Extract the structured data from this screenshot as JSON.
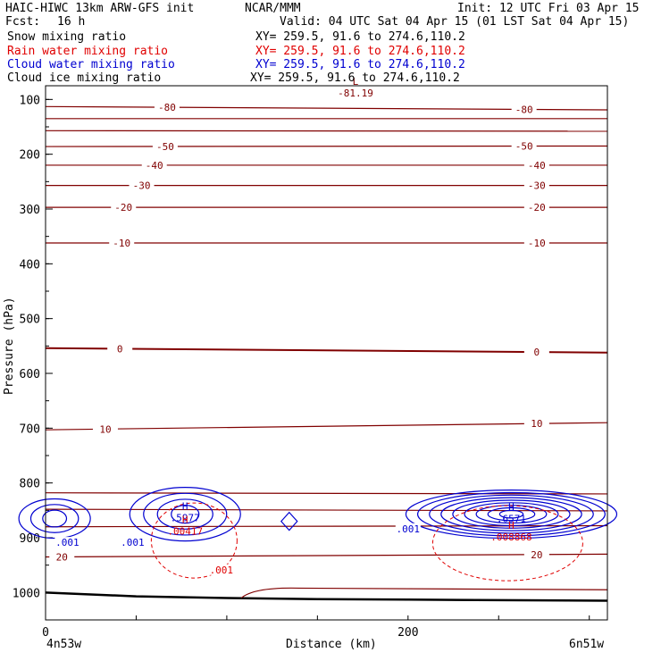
{
  "header": {
    "model": "HAIC-HIWC 13km ARW-GFS init",
    "org": "NCAR/MMM",
    "init": "Init: 12 UTC Fri 03 Apr 15",
    "fcst_label": "Fcst:",
    "fcst_value": "16 h",
    "valid": "Valid: 04 UTC Sat 04 Apr 15 (01 LST Sat 04 Apr 15)",
    "fields": [
      {
        "name": "Snow mixing ratio",
        "xy": "XY= 259.5, 91.6 to 274.6,110.2",
        "color": "#000000"
      },
      {
        "name": "Rain water mixing ratio",
        "xy": "XY= 259.5, 91.6 to 274.6,110.2",
        "color": "#e00000"
      },
      {
        "name": "Cloud water mixing ratio",
        "xy": "XY= 259.5, 91.6 to 274.6,110.2",
        "color": "#0000d0"
      },
      {
        "name": "Cloud ice mixing ratio",
        "xy": "XY= 259.5, 91.6 to 274.6,110.2",
        "color": "#000000"
      }
    ]
  },
  "chart_data": {
    "type": "line",
    "ylabel": "Pressure (hPa)",
    "xlabel": "Distance (km)",
    "ylim": [
      1050,
      75
    ],
    "xlim": [
      0,
      310
    ],
    "yticks": [
      100,
      200,
      300,
      400,
      500,
      600,
      700,
      800,
      900,
      1000
    ],
    "xticks": [
      0,
      200
    ],
    "x_endpoint_labels": {
      "left": "4n53w",
      "right": "6n51w"
    },
    "colors": {
      "temperature": "#800000",
      "rain": "#e00000",
      "cloud": "#0000d0",
      "ground": "#000000"
    },
    "temperature_isotherms": [
      {
        "t": -80,
        "y": [
          113,
          119
        ],
        "labels": [
          {
            "x": 67,
            "text": "-80"
          },
          {
            "x": 264,
            "text": "-80"
          }
        ]
      },
      {
        "t": -70,
        "y": [
          135,
          135
        ]
      },
      {
        "t": -60,
        "y": [
          157,
          158
        ]
      },
      {
        "t": -50,
        "y": [
          186,
          185
        ],
        "labels": [
          {
            "x": 66,
            "text": "-50"
          },
          {
            "x": 264,
            "text": "-50"
          }
        ]
      },
      {
        "t": -40,
        "y": [
          220,
          220
        ],
        "labels": [
          {
            "x": 60,
            "text": "-40"
          },
          {
            "x": 271,
            "text": "-40"
          }
        ]
      },
      {
        "t": -30,
        "y": [
          257,
          257
        ],
        "labels": [
          {
            "x": 53,
            "text": "-30"
          },
          {
            "x": 271,
            "text": "-30"
          }
        ]
      },
      {
        "t": -20,
        "y": [
          297,
          297
        ],
        "labels": [
          {
            "x": 43,
            "text": "-20"
          },
          {
            "x": 271,
            "text": "-20"
          }
        ]
      },
      {
        "t": -10,
        "y": [
          362,
          362
        ],
        "labels": [
          {
            "x": 42,
            "text": "-10"
          },
          {
            "x": 271,
            "text": "-10"
          }
        ]
      },
      {
        "t": 0,
        "y": [
          554,
          562
        ],
        "labels": [
          {
            "x": 41,
            "text": "0"
          },
          {
            "x": 271,
            "text": "0"
          }
        ],
        "bold": true
      },
      {
        "t": 10,
        "y": [
          703,
          690
        ],
        "labels": [
          {
            "x": 33,
            "text": "10"
          },
          {
            "x": 271,
            "text": "10"
          }
        ]
      },
      {
        "t": 20,
        "y": [
          935,
          930
        ],
        "labels": [
          {
            "x": 9,
            "text": "20"
          },
          {
            "x": 271,
            "text": "20"
          }
        ]
      }
    ],
    "extra_isotherms": [
      {
        "y": [
          880,
          878
        ]
      },
      {
        "y": [
          848,
          851
        ]
      },
      {
        "y": [
          818,
          820
        ]
      }
    ],
    "temp_extrema": [
      {
        "kind": "L",
        "value": "-81.19",
        "x": 171,
        "p": 80
      }
    ],
    "cloud_water_extrema": [
      {
        "kind": "H",
        "value": ".5977",
        "x": 77,
        "p": 855
      },
      {
        "kind": "H",
        "value": ".6571",
        "x": 257,
        "p": 857
      }
    ],
    "rain_extrema": [
      {
        "kind": "H",
        "value": ".00417",
        "x": 77,
        "p": 880
      },
      {
        "kind": "H",
        "value": ".008868",
        "x": 257,
        "p": 890
      }
    ],
    "contour_labels": [
      {
        "text": ".001",
        "x": 12,
        "p": 910,
        "series": "cloud"
      },
      {
        "text": ".001",
        "x": 48,
        "p": 910,
        "series": "cloud"
      },
      {
        "text": ".001",
        "x": 200,
        "p": 885,
        "series": "cloud"
      },
      {
        "text": ".001",
        "x": 97,
        "p": 960,
        "series": "rain"
      }
    ],
    "ground_pressure": {
      "x": [
        0,
        50,
        100,
        150,
        200,
        250,
        310
      ],
      "p": [
        1000,
        1007,
        1010,
        1012,
        1013,
        1014,
        1015
      ]
    }
  }
}
